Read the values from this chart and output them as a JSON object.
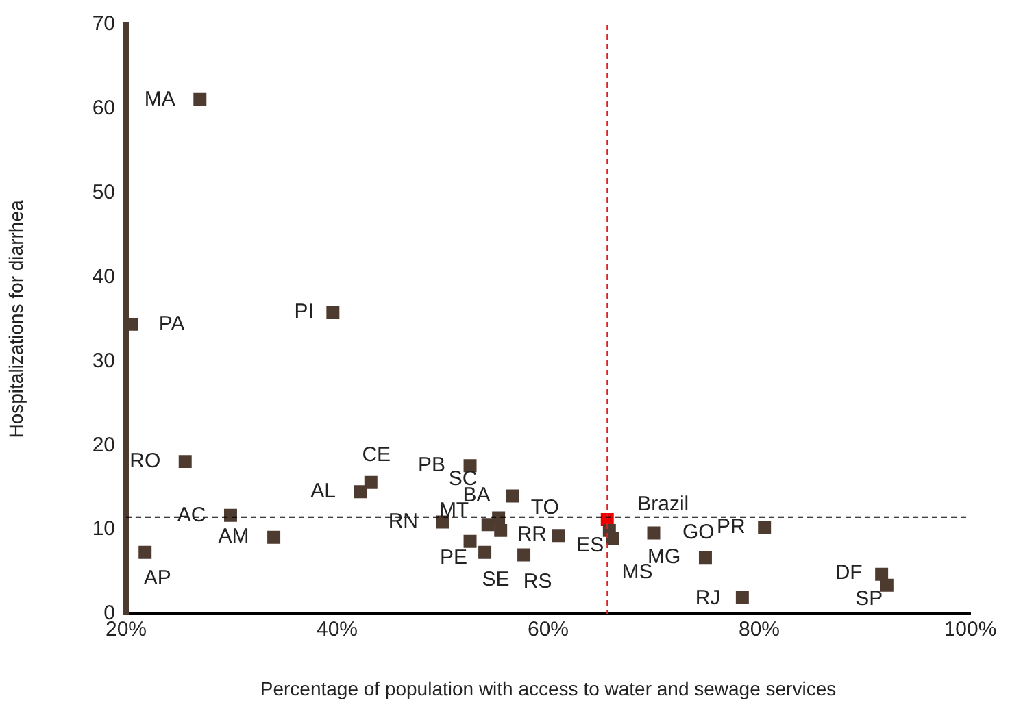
{
  "chart_data": {
    "type": "scatter",
    "xlabel": "Percentage of population with access to water and sewage services",
    "ylabel": "Hospitalizations for diarrhea",
    "x": [
      27.0,
      20.5,
      39.6,
      25.6,
      21.8,
      29.9,
      34.0,
      42.2,
      43.2,
      52.6,
      55.3,
      56.6,
      50.0,
      54.3,
      55.5,
      52.6,
      54.0,
      57.7,
      61.0,
      65.6,
      65.8,
      66.1,
      70.0,
      74.9,
      80.5,
      78.4,
      91.6,
      92.1
    ],
    "values": [
      61.1,
      34.4,
      35.8,
      18.1,
      7.3,
      11.7,
      9.1,
      14.5,
      15.6,
      17.6,
      11.4,
      14.0,
      10.9,
      10.6,
      9.9,
      8.6,
      7.3,
      7.0,
      9.3,
      11.2,
      9.9,
      9.0,
      9.6,
      6.7,
      10.3,
      2.0,
      4.7,
      3.4
    ],
    "colors": [
      "#4e3b30",
      "#4e3b30",
      "#4e3b30",
      "#4e3b30",
      "#4e3b30",
      "#4e3b30",
      "#4e3b30",
      "#4e3b30",
      "#4e3b30",
      "#4e3b30",
      "#4e3b30",
      "#4e3b30",
      "#4e3b30",
      "#4e3b30",
      "#4e3b30",
      "#4e3b30",
      "#4e3b30",
      "#4e3b30",
      "#4e3b30",
      "#ee0000",
      "#4e3b30",
      "#4e3b30",
      "#4e3b30",
      "#4e3b30",
      "#4e3b30",
      "#4e3b30",
      "#4e3b30",
      "#4e3b30"
    ],
    "annotations": [
      {
        "text": "MA",
        "x": 27.0,
        "y": 61.1
      },
      {
        "text": "PA",
        "x": 20.5,
        "y": 34.4
      },
      {
        "text": "PI",
        "x": 39.6,
        "y": 35.8
      },
      {
        "text": "RO",
        "x": 25.6,
        "y": 18.1
      },
      {
        "text": "AP",
        "x": 21.8,
        "y": 7.3
      },
      {
        "text": "AC",
        "x": 29.9,
        "y": 11.7
      },
      {
        "text": "AM",
        "x": 34.0,
        "y": 9.1
      },
      {
        "text": "AL",
        "x": 42.2,
        "y": 14.5
      },
      {
        "text": "CE",
        "x": 43.2,
        "y": 15.6
      },
      {
        "text": "PB",
        "x": 52.6,
        "y": 17.6
      },
      {
        "text": "SC",
        "x": 55.3,
        "y": 11.4
      },
      {
        "text": "BA",
        "x": 56.6,
        "y": 14.0
      },
      {
        "text": "RN",
        "x": 50.0,
        "y": 10.9
      },
      {
        "text": "MT",
        "x": 54.3,
        "y": 10.6
      },
      {
        "text": "RR",
        "x": 55.5,
        "y": 9.9
      },
      {
        "text": "PE",
        "x": 52.6,
        "y": 8.6
      },
      {
        "text": "SE",
        "x": 54.0,
        "y": 7.3
      },
      {
        "text": "RS",
        "x": 57.7,
        "y": 7.0
      },
      {
        "text": "TO",
        "x": 61.0,
        "y": 9.3
      },
      {
        "text": "Brazil",
        "x": 65.6,
        "y": 11.2
      },
      {
        "text": "ES",
        "x": 65.8,
        "y": 9.9
      },
      {
        "text": "MS",
        "x": 66.1,
        "y": 9.0
      },
      {
        "text": "GO",
        "x": 70.0,
        "y": 9.6
      },
      {
        "text": "MG",
        "x": 74.9,
        "y": 6.7
      },
      {
        "text": "PR",
        "x": 80.5,
        "y": 10.3
      },
      {
        "text": "RJ",
        "x": 78.4,
        "y": 2.0
      },
      {
        "text": "DF",
        "x": 91.6,
        "y": 4.7
      },
      {
        "text": "SP",
        "x": 92.1,
        "y": 3.4
      }
    ],
    "ref_lines": [
      {
        "axis": "x",
        "value": 65.6,
        "color": "#e02020",
        "line_style": "dashed"
      },
      {
        "axis": "y",
        "value": 11.5,
        "color": "#000000",
        "line_style": "dashed"
      }
    ],
    "xlim": [
      20,
      100
    ],
    "xticks": [
      {
        "value": 20,
        "label": "20%"
      },
      {
        "value": 40,
        "label": "40%"
      },
      {
        "value": 60,
        "label": "60%"
      },
      {
        "value": 80,
        "label": "80%"
      },
      {
        "value": 100,
        "label": "100%"
      }
    ],
    "ylim": [
      0,
      70
    ],
    "yticks": [
      0,
      10,
      20,
      30,
      40,
      50,
      60,
      70
    ],
    "marker": "square",
    "grid": false,
    "legend": false
  }
}
